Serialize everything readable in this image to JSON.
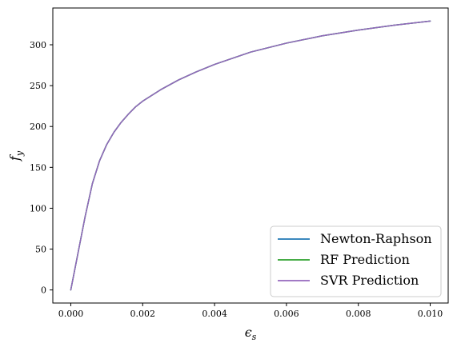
{
  "chart_data": {
    "type": "line",
    "xlabel": "ϵs",
    "ylabel": "fy",
    "xlim": [
      -0.0005,
      0.0105
    ],
    "ylim": [
      -16,
      345
    ],
    "x_ticks": [
      0.0,
      0.002,
      0.004,
      0.006,
      0.008,
      0.01
    ],
    "x_tick_labels": [
      "0.000",
      "0.002",
      "0.004",
      "0.006",
      "0.008",
      "0.010"
    ],
    "y_ticks": [
      0,
      50,
      100,
      150,
      200,
      250,
      300
    ],
    "y_tick_labels": [
      "0",
      "50",
      "100",
      "150",
      "200",
      "250",
      "300"
    ],
    "legend_position": "lower-right",
    "series": [
      {
        "name": "Newton-Raphson",
        "color": "#1f77b4",
        "x": [
          0.0,
          0.0002,
          0.0004,
          0.0006,
          0.0008,
          0.001,
          0.0012,
          0.0014,
          0.0016,
          0.0018,
          0.002,
          0.0025,
          0.003,
          0.0035,
          0.004,
          0.005,
          0.006,
          0.007,
          0.008,
          0.009,
          0.01
        ],
        "y": [
          0,
          45,
          90,
          130,
          158,
          178,
          193,
          205,
          215,
          224,
          231,
          245,
          257,
          267,
          276,
          291,
          302,
          311,
          318,
          324,
          329
        ]
      },
      {
        "name": "RF Prediction",
        "color": "#2ca02c",
        "x": [
          0.0,
          0.0002,
          0.0004,
          0.0006,
          0.0008,
          0.001,
          0.0012,
          0.0014,
          0.0016,
          0.0018,
          0.002,
          0.0025,
          0.003,
          0.0035,
          0.004,
          0.005,
          0.006,
          0.007,
          0.008,
          0.009,
          0.01
        ],
        "y": [
          0,
          45,
          90,
          130,
          158,
          178,
          193,
          205,
          215,
          224,
          231,
          245,
          257,
          267,
          276,
          291,
          302,
          311,
          318,
          324,
          329
        ]
      },
      {
        "name": "SVR Prediction",
        "color": "#9467bd",
        "x": [
          0.0,
          0.0002,
          0.0004,
          0.0006,
          0.0008,
          0.001,
          0.0012,
          0.0014,
          0.0016,
          0.0018,
          0.002,
          0.0025,
          0.003,
          0.0035,
          0.004,
          0.005,
          0.006,
          0.007,
          0.008,
          0.009,
          0.01
        ],
        "y": [
          0,
          45,
          90,
          130,
          158,
          178,
          193,
          205,
          215,
          224,
          231,
          245,
          257,
          267,
          276,
          291,
          302,
          311,
          318,
          324,
          329
        ]
      }
    ]
  }
}
